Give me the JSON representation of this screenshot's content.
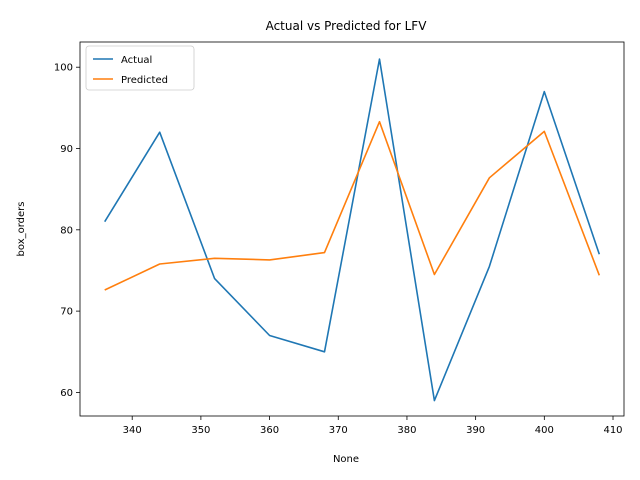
{
  "chart_data": {
    "type": "line",
    "title": "Actual vs Predicted for LFV",
    "xlabel": "None",
    "ylabel": "box_orders",
    "x": [
      336,
      344,
      352,
      360,
      368,
      376,
      384,
      392,
      400,
      408
    ],
    "series": [
      {
        "name": "Actual",
        "color": "#1f77b4",
        "values": [
          81,
          92,
          74,
          67,
          65,
          101,
          59,
          75.5,
          97,
          77
        ]
      },
      {
        "name": "Predicted",
        "color": "#ff7f0e",
        "values": [
          72.6,
          75.8,
          76.5,
          76.3,
          77.2,
          93.3,
          74.5,
          86.4,
          92.1,
          74.4
        ]
      }
    ],
    "xticks": [
      340,
      350,
      360,
      370,
      380,
      390,
      400,
      410
    ],
    "yticks": [
      60,
      70,
      80,
      90,
      100
    ],
    "xlim": [
      332.4,
      411.6
    ],
    "ylim": [
      57.1,
      103.1
    ],
    "grid": false,
    "legend_position": "top-left"
  }
}
